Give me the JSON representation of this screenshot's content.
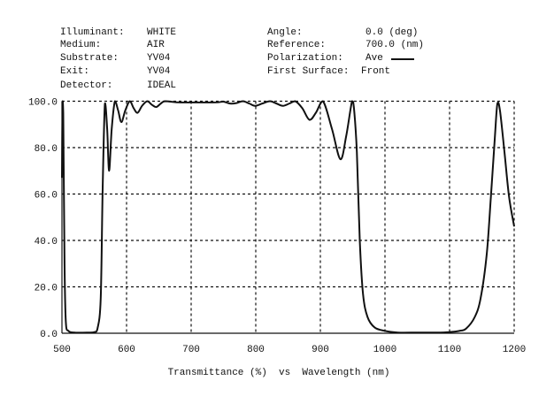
{
  "header": {
    "left": [
      {
        "label": "Illuminant:",
        "value": "WHITE"
      },
      {
        "label": "Medium:",
        "value": "AIR"
      },
      {
        "label": "Substrate:",
        "value": "YV04"
      },
      {
        "label": "Exit:",
        "value": "YV04"
      },
      {
        "label": "Detector:",
        "value": "IDEAL"
      }
    ],
    "right": [
      {
        "label": "Angle:",
        "value": "0.0 (deg)"
      },
      {
        "label": "Reference:",
        "value": "700.0 (nm)"
      },
      {
        "label": "Polarization:",
        "value": "Ave"
      },
      {
        "label": "First Surface:",
        "value": "Front"
      }
    ]
  },
  "chart_data": {
    "type": "line",
    "title": "Transmittance (%)  vs  Wavelength (nm)",
    "xlabel": "Wavelength (nm)",
    "ylabel": "Transmittance (%)",
    "xlim": [
      500,
      1200
    ],
    "ylim": [
      0,
      100
    ],
    "xticks": [
      "500",
      "600",
      "700",
      "800",
      "900",
      "1000",
      "1100",
      "1200"
    ],
    "yticks": [
      "0.0",
      "20.0",
      "40.0",
      "60.0",
      "80.0",
      "100.0"
    ],
    "grid": true,
    "line_color": "#111111",
    "series": [
      {
        "name": "Ave",
        "x": [
          500,
          501,
          502,
          504,
          506,
          510,
          520,
          540,
          550,
          555,
          560,
          563,
          566.5,
          570,
          573,
          577,
          582,
          587,
          592,
          598,
          605,
          611,
          617,
          624,
          632,
          639,
          646,
          653,
          660,
          680,
          700,
          720,
          740,
          750,
          760,
          770,
          780,
          790,
          799,
          810,
          822,
          832,
          842,
          852,
          861,
          872,
          883,
          893,
          904,
          918,
          931,
          940,
          949,
          952,
          956.5,
          961,
          966,
          973,
          984,
          1000,
          1020,
          1050,
          1080,
          1100,
          1115,
          1125.6,
          1139,
          1148,
          1157.5,
          1164,
          1170,
          1174,
          1178,
          1185,
          1192,
          1200
        ],
        "y": [
          67,
          100,
          95,
          30,
          5,
          1,
          0.3,
          0.3,
          0.5,
          2,
          15,
          62,
          99,
          88,
          70,
          88,
          100,
          96,
          91,
          96,
          100,
          97,
          95,
          98,
          100,
          98.5,
          97.5,
          99,
          100,
          99.5,
          99.5,
          99.5,
          99.5,
          99.8,
          99,
          99.2,
          100,
          99,
          98,
          99,
          100,
          99,
          98,
          99,
          100,
          97,
          92,
          95,
          100,
          88,
          75,
          85,
          100,
          97,
          78,
          40,
          17,
          7,
          2.5,
          1,
          0.3,
          0.3,
          0.3,
          0.5,
          1,
          2,
          7,
          15,
          34,
          59,
          84,
          99,
          96,
          78,
          59,
          46
        ]
      }
    ]
  }
}
